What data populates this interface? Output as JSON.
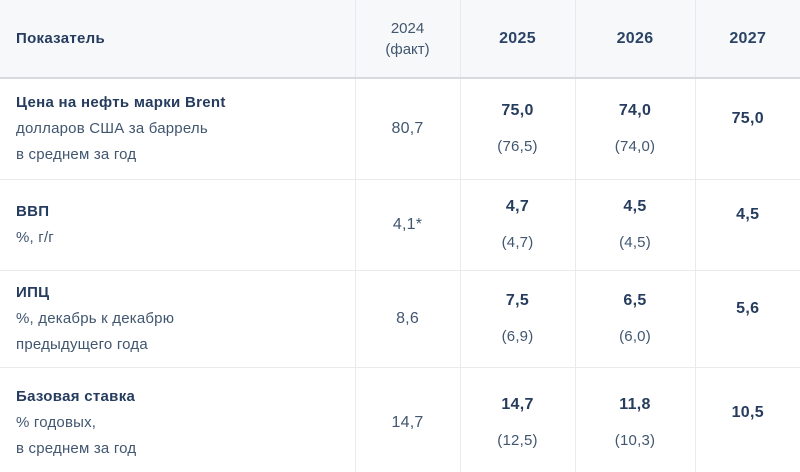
{
  "colors": {
    "header_background": "#f7f8fa",
    "header_border": "#d7dade",
    "grid_border": "#e8eaee",
    "text_bold_navy": "#263c5e",
    "text_slate": "#41566f"
  },
  "chart_data": {
    "type": "table",
    "header": {
      "indicator": "Показатель",
      "fact_year_line1": "2024",
      "fact_year_line2": "(факт)",
      "year_2025": "2025",
      "year_2026": "2026",
      "year_2027": "2027"
    },
    "rows": [
      {
        "indicator": "Цена на нефть марки Brent",
        "unit_line1": "долларов США за баррель",
        "unit_line2": "в среднем за год",
        "fact_2024": "80,7",
        "forecast_2025": "75,0",
        "previous_2025": "(76,5)",
        "forecast_2026": "74,0",
        "previous_2026": "(74,0)",
        "forecast_2027": "75,0"
      },
      {
        "indicator": "ВВП",
        "unit_line1": "%, г/г",
        "unit_line2": "",
        "fact_2024": "4,1*",
        "forecast_2025": "4,7",
        "previous_2025": "(4,7)",
        "forecast_2026": "4,5",
        "previous_2026": "(4,5)",
        "forecast_2027": "4,5"
      },
      {
        "indicator": "ИПЦ",
        "unit_line1": "%, декабрь к декабрю",
        "unit_line2": "предыдущего года",
        "fact_2024": "8,6",
        "forecast_2025": "7,5",
        "previous_2025": "(6,9)",
        "forecast_2026": "6,5",
        "previous_2026": "(6,0)",
        "forecast_2027": "5,6"
      },
      {
        "indicator": "Базовая ставка",
        "unit_line1": "% годовых,",
        "unit_line2": "в среднем за год",
        "fact_2024": "14,7",
        "forecast_2025": "14,7",
        "previous_2025": "(12,5)",
        "forecast_2026": "11,8",
        "previous_2026": "(10,3)",
        "forecast_2027": "10,5"
      }
    ]
  }
}
